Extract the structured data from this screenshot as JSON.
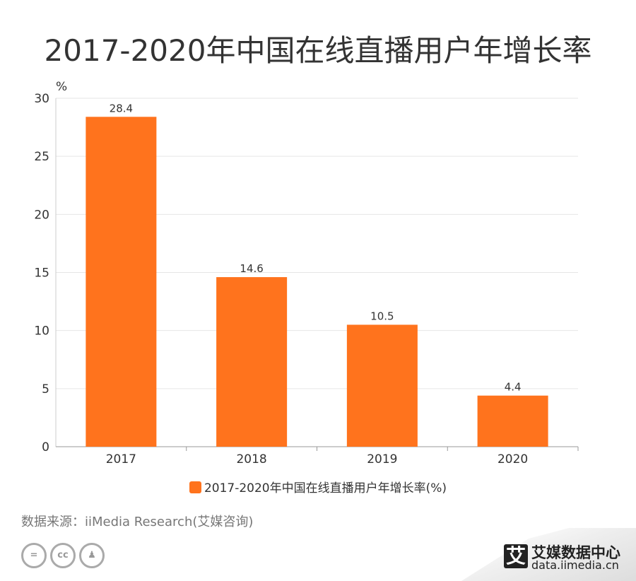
{
  "chart_data": {
    "type": "bar",
    "title": "2017-2020年中国在线直播用户年增长率",
    "ylabel": "%",
    "xlabel": "",
    "categories": [
      "2017",
      "2018",
      "2019",
      "2020"
    ],
    "series": [
      {
        "name": "2017-2020年中国在线直播用户年增长率(%)",
        "values": [
          28.4,
          14.6,
          10.5,
          4.4
        ]
      }
    ],
    "data_labels": [
      "28.4",
      "14.6",
      "10.5",
      "4.4"
    ],
    "ylim": [
      0,
      30
    ],
    "yticks": [
      "0",
      "5",
      "10",
      "15",
      "20",
      "25",
      "30"
    ],
    "grid": true,
    "legend": "bottom",
    "color": "#FF731D"
  },
  "footer": {
    "source": "数据来源：iiMedia Research(艾媒咨询)",
    "license_icons": [
      "nd-icon",
      "cc-icon",
      "by-icon"
    ],
    "logo_text": "艾媒数据中心",
    "logo_mark": "艾",
    "logo_url": "data.iimedia.cn"
  }
}
